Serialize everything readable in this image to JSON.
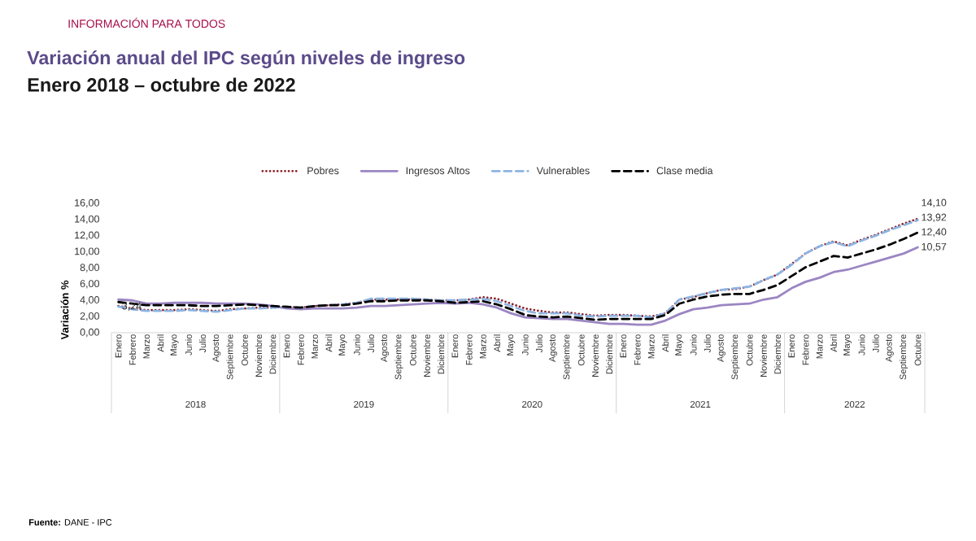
{
  "chart_data": {
    "type": "line",
    "title": "Variación anual del IPC según niveles de ingreso",
    "subtitle": "Enero 2018 – octubre de 2022",
    "ylabel": "Variación %",
    "categories": [
      "Enero",
      "Febrero",
      "Marzo",
      "Abril",
      "Mayo",
      "Junio",
      "Julio",
      "Agosto",
      "Septiembre",
      "Octubre",
      "Noviembre",
      "Diciembre",
      "Enero",
      "Febrero",
      "Marzo",
      "Abril",
      "Mayo",
      "Junio",
      "Julio",
      "Agosto",
      "Septiembre",
      "Octubre",
      "Noviembre",
      "Diciembre",
      "Enero",
      "Febrero",
      "Marzo",
      "Abril",
      "Mayo",
      "Junio",
      "Julio",
      "Agosto",
      "Septiembre",
      "Octubre",
      "Noviembre",
      "Diciembre",
      "Enero",
      "Febrero",
      "Marzo",
      "Abril",
      "Mayo",
      "Junio",
      "Julio",
      "Agosto",
      "Septiembre",
      "Octubre",
      "Noviembre",
      "Diciembre",
      "Enero",
      "Febrero",
      "Marzo",
      "Abril",
      "Mayo",
      "Junio",
      "Julio",
      "Agosto",
      "Septiembre",
      "Octubre"
    ],
    "series": [
      {
        "name": "Pobres",
        "color": "#8b1c24",
        "line_style": "dotted",
        "values": [
          3.3,
          3.0,
          2.8,
          2.8,
          2.8,
          2.9,
          2.8,
          2.7,
          2.9,
          3.0,
          3.1,
          3.1,
          3.2,
          3.1,
          3.3,
          3.4,
          3.5,
          3.7,
          4.1,
          4.1,
          4.1,
          4.1,
          4.1,
          4.0,
          4.0,
          4.1,
          4.4,
          4.2,
          3.6,
          3.0,
          2.7,
          2.5,
          2.5,
          2.3,
          2.1,
          2.2,
          2.2,
          2.1,
          2.0,
          2.4,
          4.1,
          4.4,
          4.9,
          5.3,
          5.4,
          5.7,
          6.5,
          7.2,
          8.5,
          9.8,
          10.7,
          11.3,
          10.8,
          11.5,
          12.1,
          12.8,
          13.5,
          14.1
        ],
        "value_labels": [
          null,
          null,
          null,
          null,
          null,
          null,
          null,
          null,
          null,
          null,
          null,
          null,
          null,
          null,
          null,
          null,
          null,
          null,
          null,
          null,
          null,
          null,
          null,
          null,
          null,
          null,
          null,
          null,
          null,
          null,
          null,
          null,
          null,
          null,
          null,
          null,
          null,
          null,
          null,
          null,
          null,
          null,
          null,
          null,
          null,
          null,
          null,
          null,
          null,
          null,
          null,
          null,
          null,
          null,
          null,
          null,
          null,
          "14,10"
        ]
      },
      {
        "name": "Ingresos Altos",
        "color": "#9b86c2",
        "line_style": "solid",
        "values": [
          4.1,
          4.0,
          3.6,
          3.6,
          3.7,
          3.7,
          3.7,
          3.6,
          3.6,
          3.6,
          3.5,
          3.3,
          3.0,
          2.9,
          3.0,
          3.0,
          3.0,
          3.1,
          3.3,
          3.3,
          3.4,
          3.5,
          3.6,
          3.7,
          3.6,
          3.7,
          3.5,
          3.1,
          2.4,
          1.9,
          1.8,
          1.7,
          1.7,
          1.5,
          1.3,
          1.1,
          1.1,
          1.0,
          1.0,
          1.5,
          2.3,
          2.9,
          3.1,
          3.4,
          3.5,
          3.6,
          4.1,
          4.4,
          5.5,
          6.3,
          6.8,
          7.5,
          7.8,
          8.3,
          8.8,
          9.3,
          9.8,
          10.57
        ],
        "value_labels": [
          null,
          null,
          null,
          null,
          null,
          null,
          null,
          null,
          null,
          null,
          null,
          null,
          null,
          null,
          null,
          null,
          null,
          null,
          null,
          null,
          null,
          null,
          null,
          null,
          null,
          null,
          null,
          null,
          null,
          null,
          null,
          null,
          null,
          null,
          null,
          null,
          null,
          null,
          null,
          null,
          null,
          null,
          null,
          null,
          null,
          null,
          null,
          null,
          null,
          null,
          null,
          null,
          null,
          null,
          null,
          null,
          null,
          "10,57"
        ]
      },
      {
        "name": "Vulnerables",
        "color": "#8db4e2",
        "line_style": "dashed",
        "values": [
          3.24,
          2.9,
          2.7,
          2.7,
          2.7,
          2.8,
          2.7,
          2.6,
          2.8,
          3.0,
          3.0,
          3.1,
          3.2,
          3.1,
          3.3,
          3.4,
          3.5,
          3.7,
          4.2,
          4.2,
          4.2,
          4.2,
          4.1,
          4.0,
          4.0,
          4.1,
          4.2,
          3.9,
          3.3,
          2.7,
          2.4,
          2.4,
          2.4,
          2.1,
          2.0,
          2.1,
          2.1,
          2.1,
          1.9,
          2.4,
          4.1,
          4.5,
          4.9,
          5.3,
          5.5,
          5.7,
          6.5,
          7.2,
          8.4,
          9.8,
          10.7,
          11.2,
          10.7,
          11.4,
          12.0,
          12.7,
          13.3,
          13.92
        ],
        "value_labels": [
          "3,24",
          null,
          null,
          null,
          null,
          null,
          null,
          null,
          null,
          null,
          null,
          null,
          null,
          null,
          null,
          null,
          null,
          null,
          null,
          null,
          null,
          null,
          null,
          null,
          null,
          null,
          null,
          null,
          null,
          null,
          null,
          null,
          null,
          null,
          null,
          null,
          null,
          null,
          null,
          null,
          null,
          null,
          null,
          null,
          null,
          null,
          null,
          null,
          null,
          null,
          null,
          null,
          null,
          null,
          null,
          null,
          null,
          "13,92"
        ]
      },
      {
        "name": "Clase media",
        "color": "#000000",
        "line_style": "dashed",
        "values": [
          3.8,
          3.6,
          3.4,
          3.4,
          3.4,
          3.4,
          3.3,
          3.3,
          3.4,
          3.5,
          3.4,
          3.3,
          3.2,
          3.1,
          3.3,
          3.4,
          3.4,
          3.6,
          3.9,
          3.9,
          4.0,
          4.0,
          4.0,
          3.9,
          3.7,
          3.8,
          3.9,
          3.5,
          2.9,
          2.2,
          2.0,
          1.9,
          2.0,
          1.8,
          1.6,
          1.7,
          1.7,
          1.7,
          1.7,
          2.2,
          3.6,
          4.1,
          4.5,
          4.7,
          4.8,
          4.8,
          5.3,
          5.9,
          7.0,
          8.1,
          8.8,
          9.5,
          9.3,
          9.8,
          10.3,
          10.9,
          11.6,
          12.4
        ],
        "value_labels": [
          null,
          null,
          null,
          null,
          null,
          null,
          null,
          null,
          null,
          null,
          null,
          null,
          null,
          null,
          null,
          null,
          null,
          null,
          null,
          null,
          null,
          null,
          null,
          null,
          null,
          null,
          null,
          null,
          null,
          null,
          null,
          null,
          null,
          null,
          null,
          null,
          null,
          null,
          null,
          null,
          null,
          null,
          null,
          null,
          null,
          null,
          null,
          null,
          null,
          null,
          null,
          null,
          null,
          null,
          null,
          null,
          null,
          "12,40"
        ]
      }
    ],
    "ylim": [
      0,
      16
    ],
    "yticks": [
      {
        "value": 0,
        "label": "0,00"
      },
      {
        "value": 2,
        "label": "2,00"
      },
      {
        "value": 4,
        "label": "4,00"
      },
      {
        "value": 6,
        "label": "6,00"
      },
      {
        "value": 8,
        "label": "8,00"
      },
      {
        "value": 10,
        "label": "10,00"
      },
      {
        "value": 12,
        "label": "12,00"
      },
      {
        "value": 14,
        "label": "14,00"
      },
      {
        "value": 16,
        "label": "16,00"
      }
    ],
    "legend": "top",
    "marker": "none",
    "annotations": [
      "INFORMACIÓN PARA TODOS",
      "2018",
      "2019",
      "2020",
      "2021",
      "2022",
      "**Fuente:** DANE - IPC"
    ]
  }
}
